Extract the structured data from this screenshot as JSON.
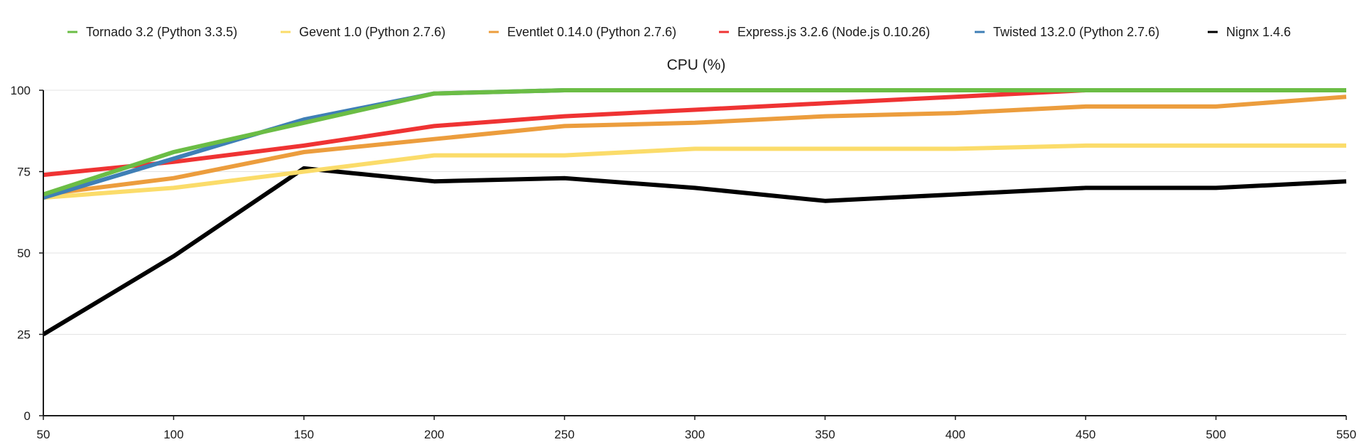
{
  "chart_data": {
    "type": "line",
    "title": "CPU (%)",
    "xlabel": "",
    "ylabel": "",
    "x": [
      50,
      100,
      150,
      200,
      250,
      300,
      350,
      400,
      450,
      500,
      550
    ],
    "xlim": [
      50,
      550
    ],
    "ylim": [
      0,
      100
    ],
    "yticks": [
      0,
      25,
      50,
      75,
      100
    ],
    "xticks": [
      50,
      100,
      150,
      200,
      250,
      300,
      350,
      400,
      450,
      500,
      550
    ],
    "grid": true,
    "legend_position": "top",
    "series": [
      {
        "name": "Tornado 3.2 (Python 3.3.5)",
        "color": "#6bbd45",
        "values": [
          68,
          81,
          90,
          99,
          100,
          100,
          100,
          100,
          100,
          100,
          100
        ]
      },
      {
        "name": "Gevent 1.0 (Python 2.7.6)",
        "color": "#fbdc6a",
        "values": [
          67,
          70,
          75,
          80,
          80,
          82,
          82,
          82,
          83,
          83,
          83
        ]
      },
      {
        "name": "Eventlet 0.14.0 (Python 2.7.6)",
        "color": "#ec9d3d",
        "values": [
          68,
          73,
          81,
          85,
          89,
          90,
          92,
          93,
          95,
          95,
          98
        ]
      },
      {
        "name": "Express.js 3.2.6 (Node.js 0.10.26)",
        "color": "#ef3333",
        "values": [
          74,
          78,
          83,
          89,
          92,
          94,
          96,
          98,
          100,
          100,
          100
        ]
      },
      {
        "name": "Twisted 13.2.0 (Python 2.7.6)",
        "color": "#3f7fb6",
        "values": [
          67,
          79,
          91,
          99,
          100,
          100,
          100,
          100,
          100,
          100,
          100
        ]
      },
      {
        "name": "Nignx 1.4.6",
        "color": "#000000",
        "values": [
          25,
          49,
          76,
          72,
          73,
          70,
          66,
          68,
          70,
          70,
          72
        ]
      }
    ],
    "draw_order": [
      5,
      1,
      2,
      3,
      4,
      0
    ]
  }
}
